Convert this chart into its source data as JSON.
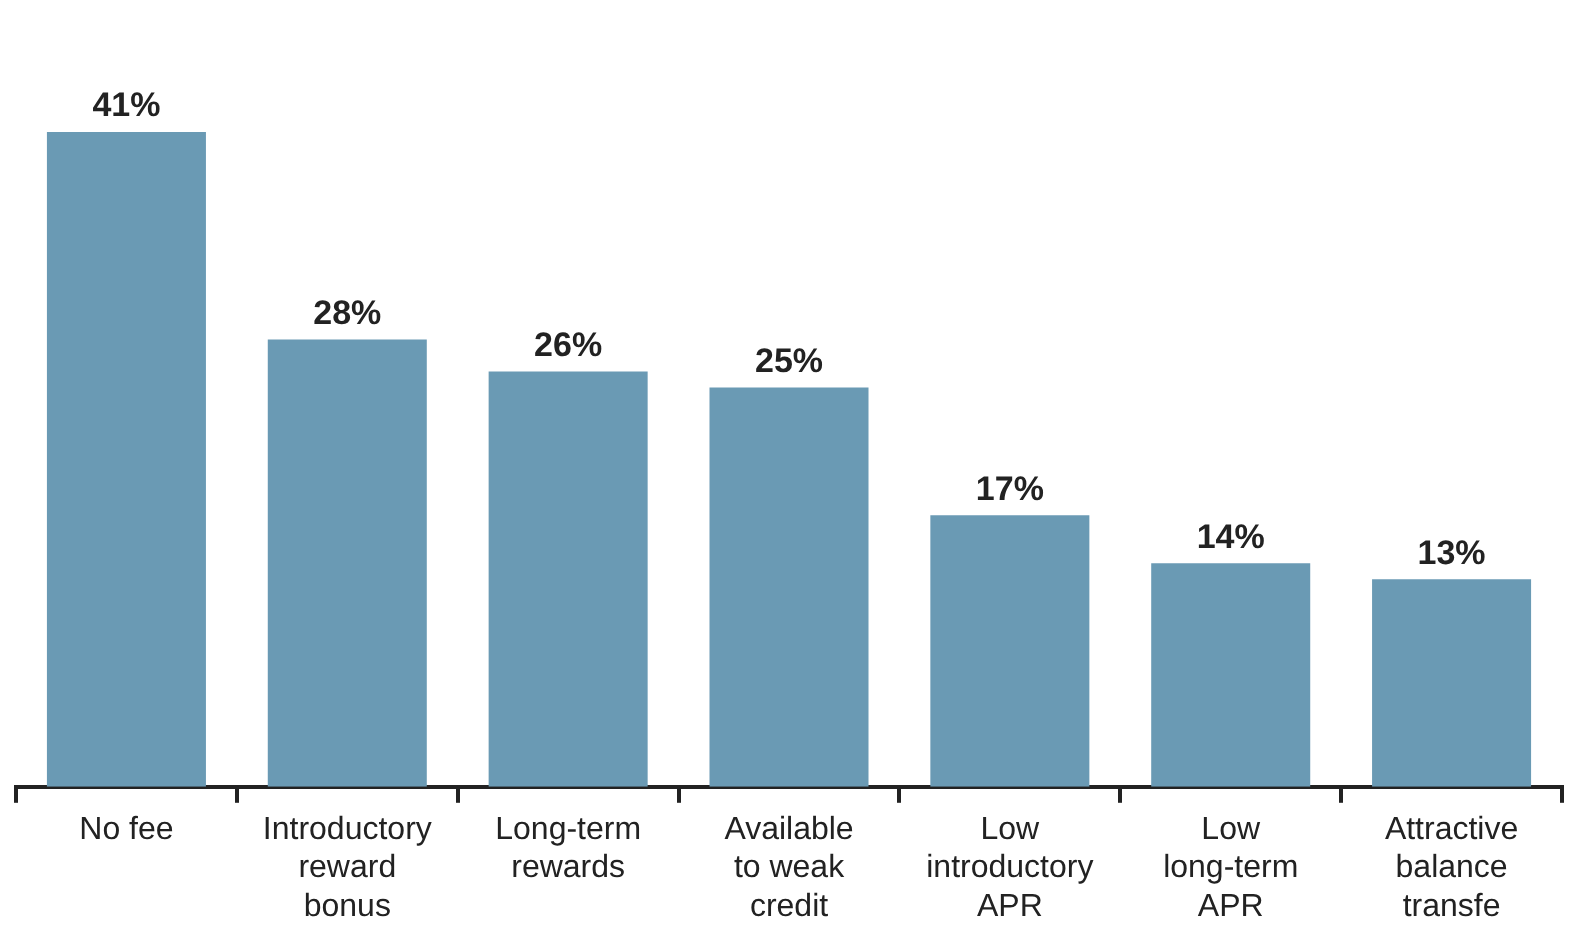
{
  "chart_data": {
    "type": "bar",
    "categories": [
      "No fee",
      "Introductory reward bonus",
      "Long-term rewards",
      "Available to weak credit",
      "Low introductory APR",
      "Low long-term APR",
      "Attractive balance transfe"
    ],
    "values": [
      41,
      28,
      26,
      25,
      17,
      14,
      13
    ],
    "value_labels": [
      "41%",
      "28%",
      "26%",
      "25%",
      "17%",
      "14%",
      "13%"
    ],
    "color": "#6a9ab4",
    "grid": false,
    "legend": false,
    "tick_labels": "x"
  }
}
